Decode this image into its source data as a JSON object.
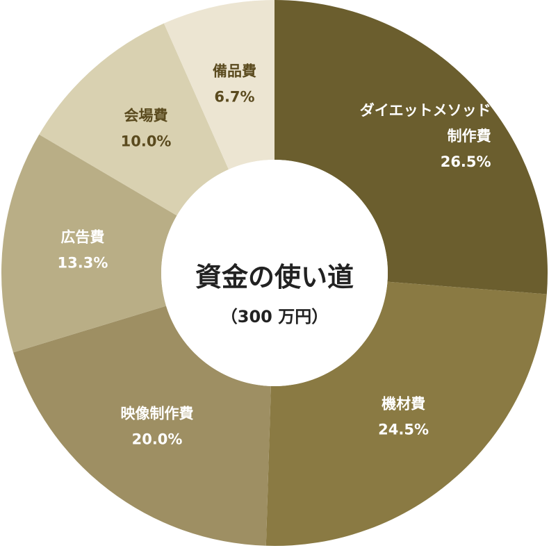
{
  "chart_data": {
    "type": "donut",
    "center_title": "資金の使い道",
    "center_subtitle": "（300 万円）",
    "categories": [
      "ダイエットメソッド制作費",
      "機材費",
      "映像制作費",
      "広告費",
      "会場費",
      "備品費"
    ],
    "values": [
      26.5,
      24.5,
      20.0,
      13.3,
      10.0,
      6.7
    ],
    "value_labels": [
      "26.5%",
      "24.5%",
      "20.0%",
      "13.3%",
      "10.0%",
      "6.7%"
    ],
    "colors": [
      "#6b5e2e",
      "#8a7a43",
      "#9e8f63",
      "#b9ae86",
      "#d9d1b1",
      "#ece5d2"
    ],
    "label_colors": [
      "#ffffff",
      "#ffffff",
      "#ffffff",
      "#ffffff",
      "#5a4a1e",
      "#5a4a1e"
    ]
  }
}
